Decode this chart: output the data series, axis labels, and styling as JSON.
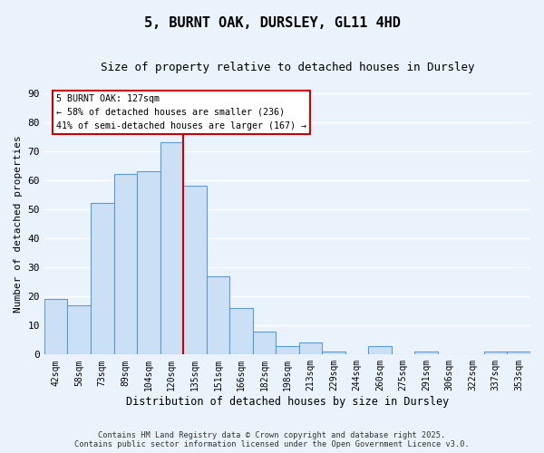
{
  "title": "5, BURNT OAK, DURSLEY, GL11 4HD",
  "subtitle": "Size of property relative to detached houses in Dursley",
  "xlabel": "Distribution of detached houses by size in Dursley",
  "ylabel": "Number of detached properties",
  "categories": [
    "42sqm",
    "58sqm",
    "73sqm",
    "89sqm",
    "104sqm",
    "120sqm",
    "135sqm",
    "151sqm",
    "166sqm",
    "182sqm",
    "198sqm",
    "213sqm",
    "229sqm",
    "244sqm",
    "260sqm",
    "275sqm",
    "291sqm",
    "306sqm",
    "322sqm",
    "337sqm",
    "353sqm"
  ],
  "values": [
    19,
    17,
    52,
    62,
    63,
    73,
    58,
    27,
    16,
    8,
    3,
    4,
    1,
    0,
    3,
    0,
    1,
    0,
    0,
    1,
    1
  ],
  "bar_color": "#cce0f5",
  "bar_edge_color": "#5b9bd5",
  "bg_color": "#eaf2fb",
  "grid_color": "#ffffff",
  "property_label": "5 BURNT OAK: 127sqm",
  "annotation_line1": "← 58% of detached houses are smaller (236)",
  "annotation_line2": "41% of semi-detached houses are larger (167) →",
  "annotation_box_color": "#ffffff",
  "annotation_box_edge": "#cc0000",
  "vline_color": "#cc0000",
  "vline_x": 5.5,
  "ylim": [
    0,
    90
  ],
  "yticks": [
    0,
    10,
    20,
    30,
    40,
    50,
    60,
    70,
    80,
    90
  ],
  "footnote1": "Contains HM Land Registry data © Crown copyright and database right 2025.",
  "footnote2": "Contains public sector information licensed under the Open Government Licence v3.0."
}
